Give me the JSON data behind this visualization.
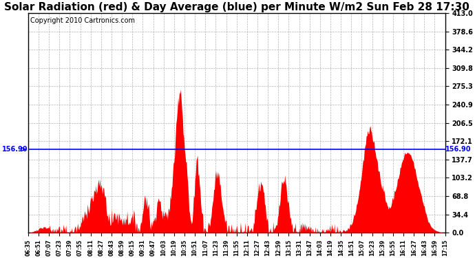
{
  "title": "Solar Radiation (red) & Day Average (blue) per Minute W/m2 Sun Feb 28 17:30",
  "copyright": "Copyright 2010 Cartronics.com",
  "avg_line": 156.9,
  "avg_label": "156.90",
  "ymax": 413.0,
  "ymin": 0.0,
  "yticks": [
    0.0,
    34.4,
    68.8,
    103.2,
    137.7,
    172.1,
    206.5,
    240.9,
    275.3,
    309.8,
    344.2,
    378.6,
    413.0
  ],
  "xtick_labels": [
    "06:35",
    "06:51",
    "07:07",
    "07:23",
    "07:39",
    "07:55",
    "08:11",
    "08:27",
    "08:43",
    "08:59",
    "09:15",
    "09:31",
    "09:47",
    "10:03",
    "10:19",
    "10:35",
    "10:51",
    "11:07",
    "11:23",
    "11:39",
    "11:55",
    "12:11",
    "12:27",
    "12:43",
    "12:59",
    "13:15",
    "13:31",
    "13:47",
    "14:03",
    "14:19",
    "14:35",
    "14:51",
    "15:07",
    "15:23",
    "15:39",
    "15:55",
    "16:11",
    "16:27",
    "16:43",
    "16:59",
    "17:15"
  ],
  "fill_color": "#FF0000",
  "line_color": "#0000FF",
  "bg_color": "#FFFFFF",
  "grid_color": "#AAAAAA",
  "grid_color2": "#CC9999",
  "title_fontsize": 11,
  "copyright_fontsize": 7
}
